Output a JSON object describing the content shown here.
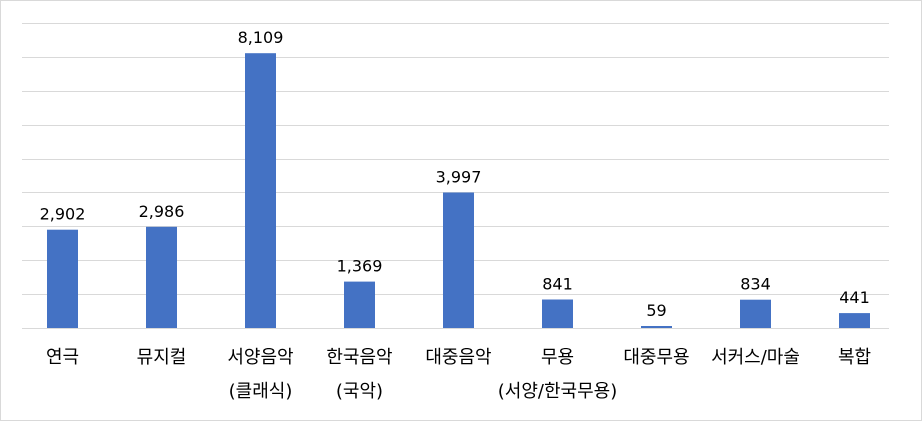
{
  "chart_data": {
    "type": "bar",
    "title": "",
    "xlabel": "",
    "ylabel": "",
    "categories": [
      [
        "연극"
      ],
      [
        "뮤지컬"
      ],
      [
        "서양음악",
        "(클래식)"
      ],
      [
        "한국음악",
        "(국악)"
      ],
      [
        "대중음악"
      ],
      [
        "무용",
        "(서양/한국무용)"
      ],
      [
        "대중무용"
      ],
      [
        "서커스/마술"
      ],
      [
        "복합"
      ]
    ],
    "values": [
      2902,
      2986,
      8109,
      1369,
      3997,
      841,
      59,
      834,
      441
    ],
    "data_labels": [
      "2,902",
      "2,986",
      "8,109",
      "1,369",
      "3,997",
      "841",
      "59",
      "834",
      "441"
    ],
    "ylim": [
      0,
      9000
    ],
    "ytick_step": 1000,
    "grid": true,
    "legend": "none",
    "bar_color": "#4472c4"
  }
}
